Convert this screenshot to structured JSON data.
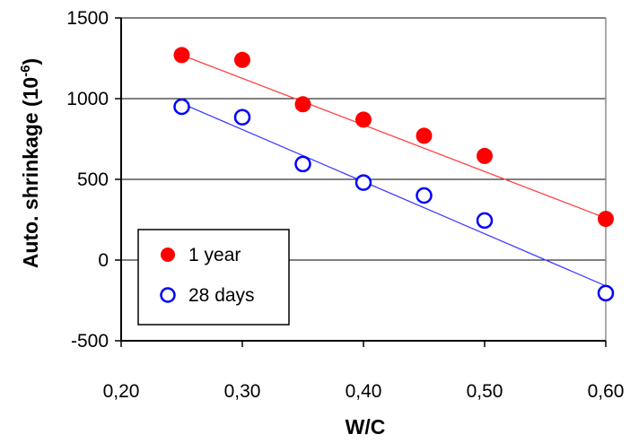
{
  "chart_data": {
    "type": "scatter",
    "title": "",
    "xlabel": "W/C",
    "ylabel_main": "Auto. shrinkage (10",
    "ylabel_sup": "-6",
    "ylabel_close": ")",
    "xlim": [
      0.2,
      0.6
    ],
    "ylim": [
      -500,
      1500
    ],
    "x_ticks": [
      0.2,
      0.3,
      0.4,
      0.5,
      0.6
    ],
    "x_tick_labels": [
      "0,20",
      "0,30",
      "0,40",
      "0,50",
      "0,60"
    ],
    "y_ticks": [
      -500,
      0,
      500,
      1000,
      1500
    ],
    "y_tick_labels": [
      "-500",
      "0",
      "500",
      "1000",
      "1500"
    ],
    "grid": "horizontal",
    "legend_position": "bottom-left",
    "series": [
      {
        "name": "1 year",
        "marker": "filled-circle",
        "color": "#ff0000",
        "trendline_color": "#ff4040",
        "x": [
          0.25,
          0.3,
          0.35,
          0.4,
          0.45,
          0.5,
          0.6
        ],
        "values": [
          1270,
          1240,
          965,
          870,
          770,
          645,
          255
        ],
        "trendline": [
          1270,
          260
        ]
      },
      {
        "name": "28 days",
        "marker": "open-circle",
        "color": "#0000ff",
        "trendline_color": "#4040ff",
        "x": [
          0.25,
          0.3,
          0.35,
          0.4,
          0.45,
          0.5,
          0.6
        ],
        "values": [
          950,
          885,
          595,
          480,
          400,
          245,
          -205
        ],
        "trendline": [
          970,
          -160
        ]
      }
    ]
  }
}
